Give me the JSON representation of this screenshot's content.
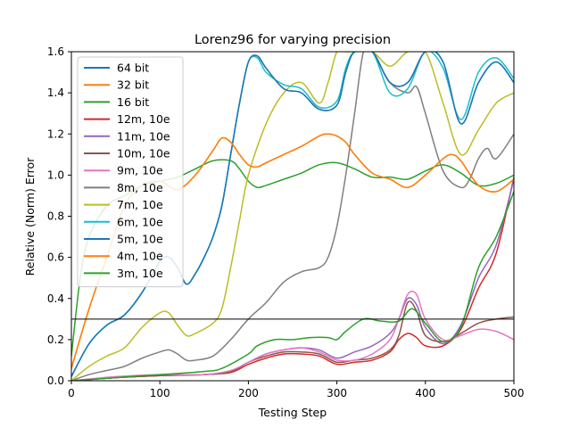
{
  "chart_data": {
    "type": "line",
    "title": "Lorenz96 for varying precision",
    "xlabel": "Testing Step",
    "ylabel": "Relative (Norm) Error",
    "xlim": [
      0,
      500
    ],
    "ylim": [
      0,
      1.6
    ],
    "xticks": [
      "0",
      "100",
      "200",
      "300",
      "400",
      "500"
    ],
    "yticks": [
      "0.0",
      "0.2",
      "0.4",
      "0.6",
      "0.8",
      "1.0",
      "1.2",
      "1.4",
      "1.6"
    ],
    "grid": false,
    "legend_position": "top-left",
    "reference_line": {
      "y": 0.3,
      "color": "#000000"
    },
    "series": [
      {
        "name": "64 bit",
        "color": "#1f77b4",
        "x": [
          0,
          20,
          40,
          60,
          80,
          100,
          110,
          120,
          130,
          140,
          150,
          160,
          170,
          180,
          190,
          200,
          210,
          220,
          240,
          260,
          280,
          300,
          310,
          320,
          340,
          360,
          380,
          400,
          420,
          440,
          460,
          480,
          500
        ],
        "y": [
          0.02,
          0.18,
          0.27,
          0.32,
          0.43,
          0.58,
          0.6,
          0.55,
          0.47,
          0.52,
          0.6,
          0.7,
          0.85,
          1.1,
          1.35,
          1.55,
          1.58,
          1.52,
          1.42,
          1.4,
          1.32,
          1.34,
          1.5,
          1.6,
          1.6,
          1.45,
          1.45,
          1.6,
          1.55,
          1.25,
          1.45,
          1.55,
          1.45
        ]
      },
      {
        "name": "32 bit",
        "color": "#ff7f0e",
        "x": [
          0,
          20,
          40,
          60,
          80,
          100,
          120,
          140,
          160,
          170,
          180,
          190,
          200,
          210,
          220,
          240,
          260,
          280,
          290,
          300,
          310,
          320,
          340,
          360,
          380,
          400,
          420,
          430,
          440,
          460,
          480,
          500
        ],
        "y": [
          0.06,
          0.35,
          0.6,
          0.85,
          0.95,
          0.97,
          0.93,
          1.0,
          1.12,
          1.18,
          1.16,
          1.1,
          1.05,
          1.04,
          1.06,
          1.1,
          1.14,
          1.19,
          1.2,
          1.19,
          1.16,
          1.1,
          1.01,
          0.98,
          0.94,
          1.0,
          1.08,
          1.1,
          1.07,
          0.95,
          0.92,
          0.98
        ]
      },
      {
        "name": "16 bit",
        "color": "#2ca02c",
        "x": [
          0,
          10,
          20,
          40,
          60,
          80,
          100,
          120,
          140,
          160,
          180,
          190,
          200,
          210,
          220,
          240,
          260,
          280,
          300,
          320,
          340,
          360,
          380,
          400,
          420,
          440,
          460,
          480,
          500
        ],
        "y": [
          0.12,
          0.5,
          0.7,
          0.85,
          0.9,
          0.95,
          0.97,
          0.99,
          1.03,
          1.07,
          1.07,
          1.03,
          0.97,
          0.94,
          0.95,
          0.98,
          1.01,
          1.05,
          1.06,
          1.03,
          0.99,
          0.99,
          0.98,
          1.02,
          1.05,
          1.01,
          0.95,
          0.96,
          1.0
        ]
      },
      {
        "name": "12m, 10e",
        "color": "#d62728",
        "x": [
          0,
          50,
          100,
          150,
          180,
          200,
          220,
          240,
          260,
          280,
          300,
          320,
          340,
          360,
          370,
          380,
          390,
          400,
          420,
          440,
          460,
          480,
          500
        ],
        "y": [
          0.0,
          0.015,
          0.025,
          0.03,
          0.04,
          0.08,
          0.11,
          0.13,
          0.13,
          0.12,
          0.08,
          0.09,
          0.1,
          0.14,
          0.2,
          0.23,
          0.21,
          0.17,
          0.17,
          0.25,
          0.45,
          0.62,
          0.99
        ]
      },
      {
        "name": "11m, 10e",
        "color": "#9467bd",
        "x": [
          0,
          50,
          100,
          150,
          180,
          200,
          220,
          240,
          260,
          280,
          300,
          320,
          340,
          360,
          370,
          380,
          390,
          400,
          420,
          440,
          460,
          480,
          500
        ],
        "y": [
          0.0,
          0.015,
          0.025,
          0.03,
          0.045,
          0.09,
          0.13,
          0.15,
          0.16,
          0.15,
          0.11,
          0.14,
          0.17,
          0.23,
          0.3,
          0.4,
          0.37,
          0.26,
          0.18,
          0.27,
          0.5,
          0.66,
          0.98
        ]
      },
      {
        "name": "10m, 10e",
        "color": "#8c564b",
        "x": [
          0,
          50,
          100,
          150,
          180,
          200,
          220,
          240,
          260,
          280,
          300,
          320,
          340,
          360,
          370,
          380,
          390,
          400,
          420,
          440,
          460,
          480,
          500
        ],
        "y": [
          0.0,
          0.015,
          0.025,
          0.03,
          0.045,
          0.09,
          0.12,
          0.14,
          0.14,
          0.13,
          0.09,
          0.1,
          0.11,
          0.15,
          0.22,
          0.38,
          0.34,
          0.22,
          0.19,
          0.23,
          0.28,
          0.3,
          0.31
        ]
      },
      {
        "name": "9m, 10e",
        "color": "#e377c2",
        "x": [
          0,
          50,
          100,
          150,
          180,
          200,
          220,
          240,
          260,
          280,
          300,
          320,
          340,
          360,
          370,
          380,
          390,
          400,
          420,
          440,
          460,
          480,
          500
        ],
        "y": [
          0.0,
          0.02,
          0.03,
          0.03,
          0.05,
          0.09,
          0.13,
          0.15,
          0.16,
          0.14,
          0.1,
          0.1,
          0.13,
          0.2,
          0.3,
          0.42,
          0.42,
          0.3,
          0.2,
          0.22,
          0.25,
          0.24,
          0.2
        ]
      },
      {
        "name": "8m, 10e",
        "color": "#7f7f7f",
        "x": [
          0,
          20,
          40,
          60,
          80,
          100,
          110,
          120,
          130,
          140,
          160,
          180,
          200,
          220,
          240,
          260,
          280,
          290,
          300,
          310,
          320,
          330,
          340,
          360,
          380,
          390,
          400,
          420,
          440,
          450,
          460,
          470,
          480,
          500
        ],
        "y": [
          0.0,
          0.03,
          0.05,
          0.07,
          0.11,
          0.14,
          0.15,
          0.13,
          0.1,
          0.1,
          0.12,
          0.2,
          0.3,
          0.38,
          0.48,
          0.53,
          0.55,
          0.6,
          0.75,
          1.0,
          1.3,
          1.6,
          1.6,
          1.45,
          1.4,
          1.43,
          1.3,
          1.02,
          0.94,
          0.98,
          1.08,
          1.13,
          1.08,
          1.2
        ]
      },
      {
        "name": "7m, 10e",
        "color": "#bcbd22",
        "x": [
          0,
          20,
          40,
          60,
          80,
          100,
          110,
          120,
          130,
          140,
          160,
          170,
          180,
          190,
          200,
          220,
          240,
          260,
          280,
          290,
          300,
          310,
          320,
          340,
          360,
          380,
          400,
          420,
          440,
          460,
          480,
          500
        ],
        "y": [
          0.0,
          0.07,
          0.12,
          0.16,
          0.26,
          0.33,
          0.33,
          0.27,
          0.22,
          0.23,
          0.28,
          0.35,
          0.55,
          0.78,
          1.0,
          1.25,
          1.4,
          1.45,
          1.35,
          1.45,
          1.6,
          1.6,
          1.6,
          1.6,
          1.53,
          1.6,
          1.6,
          1.35,
          1.1,
          1.22,
          1.35,
          1.4
        ]
      },
      {
        "name": "6m, 10e",
        "color": "#17becf",
        "x": [
          0,
          20,
          40,
          60,
          80,
          100,
          110,
          120,
          130,
          140,
          150,
          160,
          170,
          180,
          190,
          200,
          210,
          220,
          240,
          260,
          280,
          300,
          310,
          320,
          340,
          360,
          380,
          400,
          420,
          440,
          460,
          480,
          500
        ],
        "y": [
          0.02,
          0.18,
          0.27,
          0.32,
          0.43,
          0.58,
          0.6,
          0.55,
          0.47,
          0.52,
          0.6,
          0.7,
          0.85,
          1.1,
          1.35,
          1.55,
          1.57,
          1.5,
          1.44,
          1.42,
          1.33,
          1.36,
          1.52,
          1.6,
          1.6,
          1.4,
          1.42,
          1.6,
          1.52,
          1.27,
          1.5,
          1.57,
          1.47
        ]
      },
      {
        "name": "5m, 10e",
        "color": "#1f77b4",
        "x": [
          0,
          20,
          40,
          60,
          80,
          100,
          110,
          120,
          130,
          140,
          150,
          160,
          170,
          180,
          190,
          200,
          210,
          220,
          240,
          260,
          280,
          300,
          310,
          320,
          340,
          360,
          380,
          400,
          420,
          440,
          460,
          480,
          500
        ],
        "y": [
          0.02,
          0.18,
          0.27,
          0.32,
          0.43,
          0.58,
          0.6,
          0.55,
          0.47,
          0.52,
          0.6,
          0.7,
          0.85,
          1.1,
          1.35,
          1.55,
          1.58,
          1.52,
          1.42,
          1.4,
          1.32,
          1.34,
          1.5,
          1.6,
          1.6,
          1.45,
          1.45,
          1.6,
          1.55,
          1.25,
          1.45,
          1.55,
          1.45
        ]
      },
      {
        "name": "4m, 10e",
        "color": "#ff7f0e",
        "x": [
          0,
          20,
          40,
          60,
          80,
          100,
          120,
          140,
          160,
          170,
          180,
          190,
          200,
          210,
          220,
          240,
          260,
          280,
          290,
          300,
          310,
          320,
          340,
          360,
          380,
          400,
          420,
          430,
          440,
          460,
          480,
          500
        ],
        "y": [
          0.06,
          0.35,
          0.6,
          0.85,
          0.95,
          0.97,
          0.93,
          1.0,
          1.12,
          1.18,
          1.16,
          1.1,
          1.05,
          1.04,
          1.06,
          1.1,
          1.14,
          1.19,
          1.2,
          1.19,
          1.16,
          1.1,
          1.01,
          0.98,
          0.94,
          1.0,
          1.08,
          1.1,
          1.07,
          0.95,
          0.92,
          0.98
        ]
      },
      {
        "name": "3m, 10e",
        "color": "#2ca02c",
        "x": [
          0,
          50,
          100,
          150,
          170,
          200,
          210,
          230,
          250,
          270,
          290,
          300,
          310,
          330,
          350,
          370,
          385,
          400,
          420,
          440,
          460,
          480,
          500
        ],
        "y": [
          0.0,
          0.015,
          0.03,
          0.045,
          0.06,
          0.13,
          0.17,
          0.2,
          0.2,
          0.21,
          0.21,
          0.2,
          0.24,
          0.3,
          0.29,
          0.29,
          0.35,
          0.28,
          0.19,
          0.26,
          0.55,
          0.7,
          0.92
        ]
      }
    ]
  }
}
